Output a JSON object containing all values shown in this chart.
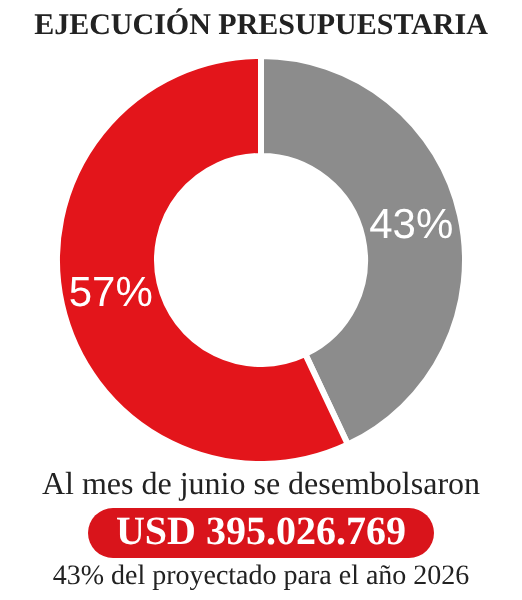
{
  "chart_data": {
    "type": "donut",
    "title": "EJECUCIÓN PRESUPUESTARIA",
    "categories": [
      null,
      null
    ],
    "values": [
      43,
      57
    ],
    "colors": [
      "#8c8c8c",
      "#e3151b"
    ],
    "value_labels": [
      "43%",
      "57%"
    ],
    "annotations": [
      "Al mes de junio se desembolsaron",
      "USD 395.026.769",
      "43% del proyectado para el año 2026"
    ]
  }
}
